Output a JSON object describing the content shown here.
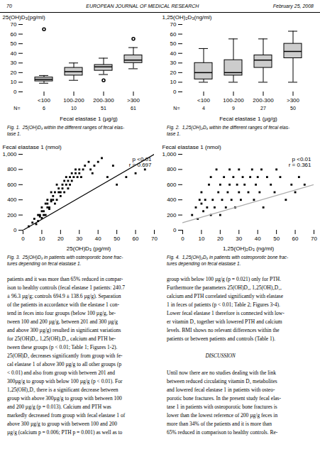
{
  "header": {
    "left": "70",
    "center": "EUROPEAN JOURNAL OF MEDICAL RESEARCH",
    "right": "February 25, 2008"
  },
  "chart_data": [
    {
      "type": "box",
      "xlabel": "Fecal elastase 1 (µg/g)",
      "ylabel": "25(OH)D₃(pg/ml)",
      "ylim": [
        0,
        70
      ],
      "yticks": [
        0,
        10,
        20,
        30,
        40,
        50,
        60,
        70
      ],
      "categories": [
        "<100",
        "100-200",
        "200-300",
        ">300"
      ],
      "n_label": "N=",
      "n": [
        6,
        10,
        51,
        61
      ],
      "boxes": [
        {
          "q1": 11,
          "median": 13,
          "q3": 15,
          "whisker_low": 9,
          "whisker_high": 17,
          "outliers": [
            65
          ]
        },
        {
          "q1": 17,
          "median": 21,
          "q3": 25,
          "whisker_low": 12,
          "whisker_high": 30,
          "outliers": []
        },
        {
          "q1": 22,
          "median": 26,
          "q3": 28,
          "whisker_low": 18,
          "whisker_high": 35,
          "outliers": [
            12
          ]
        },
        {
          "q1": 30,
          "median": 33,
          "q3": 38,
          "whisker_low": 24,
          "whisker_high": 46,
          "outliers": [
            55
          ]
        }
      ],
      "caption": "Fig. 1.  25(OH)D₃ within the different ranges of fecal elas-\ntase 1."
    },
    {
      "type": "box",
      "xlabel": "Fecal elastase 1 (µg/g)",
      "ylabel": "1,25(OH)₂D₃(ng/ml)",
      "ylim": [
        0,
        70
      ],
      "yticks": [
        0,
        10,
        20,
        30,
        40,
        50,
        60,
        70
      ],
      "categories": [
        "<100",
        "100-200",
        "200-300",
        ">300"
      ],
      "n_label": "N=",
      "n": [
        4,
        9,
        27,
        50
      ],
      "boxes": [
        {
          "q1": 13,
          "median": 20,
          "q3": 30,
          "whisker_low": 10,
          "whisker_high": 45,
          "outliers": []
        },
        {
          "q1": 17,
          "median": 20,
          "q3": 33,
          "whisker_low": 10,
          "whisker_high": 55,
          "outliers": []
        },
        {
          "q1": 25,
          "median": 33,
          "q3": 38,
          "whisker_low": 10,
          "whisker_high": 55,
          "outliers": []
        },
        {
          "q1": 35,
          "median": 42,
          "q3": 50,
          "whisker_low": 10,
          "whisker_high": 63,
          "outliers": []
        }
      ],
      "caption": "Fig. 2.  1,25(OH)₂D₃ within the different ranges of fecal elas-\ntase 1."
    },
    {
      "type": "scatter",
      "marker": "square",
      "xlabel": "25(OH)D₃ (pg/ml)",
      "ylabel": "Fecal elastase 1 (nmol)",
      "xlim": [
        0,
        70
      ],
      "ylim": [
        0,
        1000
      ],
      "xticks": [
        0,
        10,
        20,
        30,
        40,
        50,
        60,
        70
      ],
      "yticks": [
        0,
        200,
        400,
        600,
        800,
        1000
      ],
      "annotation": "p <0.01\nr = 0.697",
      "caption": "Fig. 3.  25(OH)D₃ in patients with osteoporotic bone frac-\ntures depending on fecal elastase 1.",
      "x": [
        3,
        5,
        6,
        7,
        8,
        8,
        9,
        9,
        10,
        10,
        10,
        11,
        11,
        12,
        12,
        13,
        13,
        13,
        14,
        14,
        15,
        15,
        15,
        16,
        16,
        17,
        17,
        18,
        18,
        19,
        19,
        20,
        20,
        21,
        21,
        22,
        22,
        23,
        23,
        24,
        24,
        25,
        25,
        26,
        26,
        27,
        28,
        28,
        29,
        30,
        30,
        31,
        32,
        33,
        35,
        36,
        37,
        38,
        40,
        42,
        45,
        48,
        50,
        55,
        60,
        65
      ],
      "values": [
        50,
        100,
        150,
        80,
        200,
        120,
        180,
        200,
        250,
        160,
        300,
        200,
        250,
        350,
        200,
        300,
        400,
        350,
        280,
        300,
        400,
        500,
        380,
        450,
        400,
        500,
        350,
        600,
        400,
        500,
        550,
        450,
        500,
        600,
        550,
        650,
        500,
        600,
        700,
        550,
        650,
        700,
        600,
        750,
        650,
        700,
        800,
        750,
        700,
        800,
        750,
        700,
        800,
        850,
        900,
        800,
        750,
        850,
        900,
        950,
        700,
        850,
        600,
        700,
        750,
        800
      ],
      "line": {
        "x": [
          0,
          70
        ],
        "y": [
          0,
          1000
        ],
        "color": "#000000"
      }
    },
    {
      "type": "scatter",
      "marker": "square",
      "xlabel": "1,25(OH)₂D₃ (ng/ml)",
      "ylabel": "Fecal elastase 1 (nmol)",
      "xlim": [
        0,
        70
      ],
      "ylim": [
        0,
        1000
      ],
      "xticks": [
        0,
        10,
        20,
        30,
        40,
        50,
        60,
        70
      ],
      "yticks": [
        0,
        200,
        400,
        600,
        800,
        1000
      ],
      "annotation": "p <0.01\nr = 0.361",
      "caption": "Fig. 4.  1,25(OH)₂D₃ in patients with osteoporotic bone frac-\ntures depending on fecal elastase 1.",
      "x": [
        5,
        7,
        8,
        9,
        10,
        10,
        11,
        12,
        13,
        14,
        15,
        15,
        16,
        17,
        18,
        19,
        20,
        20,
        21,
        22,
        23,
        24,
        25,
        25,
        26,
        27,
        28,
        29,
        30,
        30,
        31,
        32,
        33,
        35,
        36,
        37,
        38,
        39,
        40,
        41,
        42,
        43,
        45,
        47,
        49,
        50,
        52,
        55,
        58,
        60,
        62,
        65
      ],
      "values": [
        200,
        300,
        150,
        400,
        350,
        500,
        250,
        400,
        300,
        600,
        200,
        700,
        400,
        300,
        800,
        500,
        200,
        600,
        400,
        700,
        300,
        500,
        600,
        800,
        400,
        700,
        300,
        600,
        500,
        800,
        400,
        700,
        600,
        500,
        700,
        800,
        400,
        600,
        700,
        500,
        800,
        300,
        700,
        600,
        500,
        800,
        700,
        400,
        600,
        500,
        700,
        600
      ],
      "line": {
        "x": [
          0,
          70
        ],
        "y": [
          100,
          600
        ],
        "color": "#aaaaaa"
      }
    }
  ],
  "body_left_lines": [
    "patients and it was more than 65% reduced in compar-",
    "ison to healthy controls (fecal elastase 1 patients: 240.7",
    "± 96.3 µg/g; controls 694.9 ± 138.6 µg/g). Separation",
    "of the patients in accordance with the elastase 1 con-",
    "tend in feces into four groups (below 100 µg/g, be-",
    "tween 100 and 200 µg/g, between 201 and 300 µg/g",
    "and above 300 µg/g) resulted in significant variations",
    "for 25(OH)D₃, 1,25(OH)₂D₃, calcium and PTH be-",
    "tween these groups (p < 0.01; Table 1; Figures 1-2).",
    "25(OH)D₃ decreases significantly from group with fe-",
    "cal elastase 1 of above 300 µg/g to all other groups (p",
    "< 0.01) and also from group with between 201 and",
    "300µg/g to group with below 100 µg/g (p < 0.01). For",
    "1,25(OH)₂D₃ there is a significant decrease between",
    "group with above 300µg/g to group with between 100",
    "and 200 µg/g (p = 0.013). Calcium and PTH was",
    "markedly decreased from group with fecal elastase 1 of",
    "above 300 µg/g to group with between 100 and 200",
    "µg/g (calcium p = 0.006; PTH p = 0.001) as well as to"
  ],
  "body_right_lines": [
    "group with below 100 µg/g (p = 0.021) only for PTH.",
    "Furthermore the parameters 25(OH)D₃, 1,25(OH)₂D₃,",
    "calcium and PTH correlated significantly with elastase",
    "1 in feces of patients (p < 0.01; Table 2; Figures 3-4).",
    "Lower fecal elastase 1 therefore is connected with low-",
    "er vitamin D₃ together with lowered PTH and calcium",
    "levels. BMI shows no relevant differences within the",
    "patients or between patients and controls (Table 1).",
    "",
    "                             DISCUSSION",
    "",
    "Until now there are no studies dealing with the link",
    "between reduced circulating vitamin D₃ metabolites",
    "and lowered fecal elastase 1 in patients with osteo-",
    "porotic bone fractures. In the present study fecal elas-",
    "tase 1 in patients with osteoporotic bone fractures is",
    "lower than the lowest reference of 200 µg/g feces in",
    "more than 34% of the patients and it is more than",
    "65% reduced in comparison to healthy controls. Re-"
  ]
}
